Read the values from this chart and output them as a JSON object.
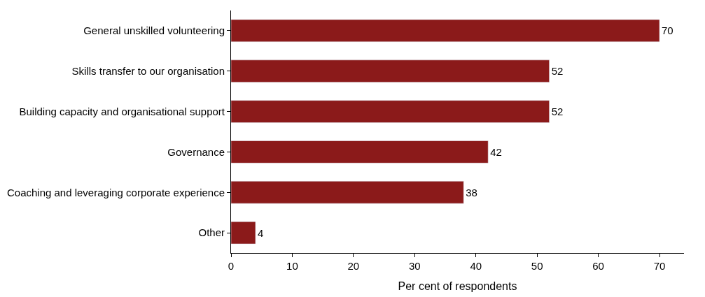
{
  "chart_data": {
    "type": "bar",
    "orientation": "horizontal",
    "xlabel": "Per cent of respondents",
    "categories": [
      "General unskilled volunteering",
      "Skills transfer to our organisation",
      "Building capacity and organisational support",
      "Governance",
      "Coaching and leveraging corporate experience",
      "Other"
    ],
    "values": [
      70,
      52,
      52,
      42,
      38,
      4
    ],
    "color": "#8b1a1a",
    "xlim": [
      0,
      74
    ],
    "xticks": [
      0,
      10,
      20,
      30,
      40,
      50,
      60,
      70
    ],
    "data_labels": true
  }
}
